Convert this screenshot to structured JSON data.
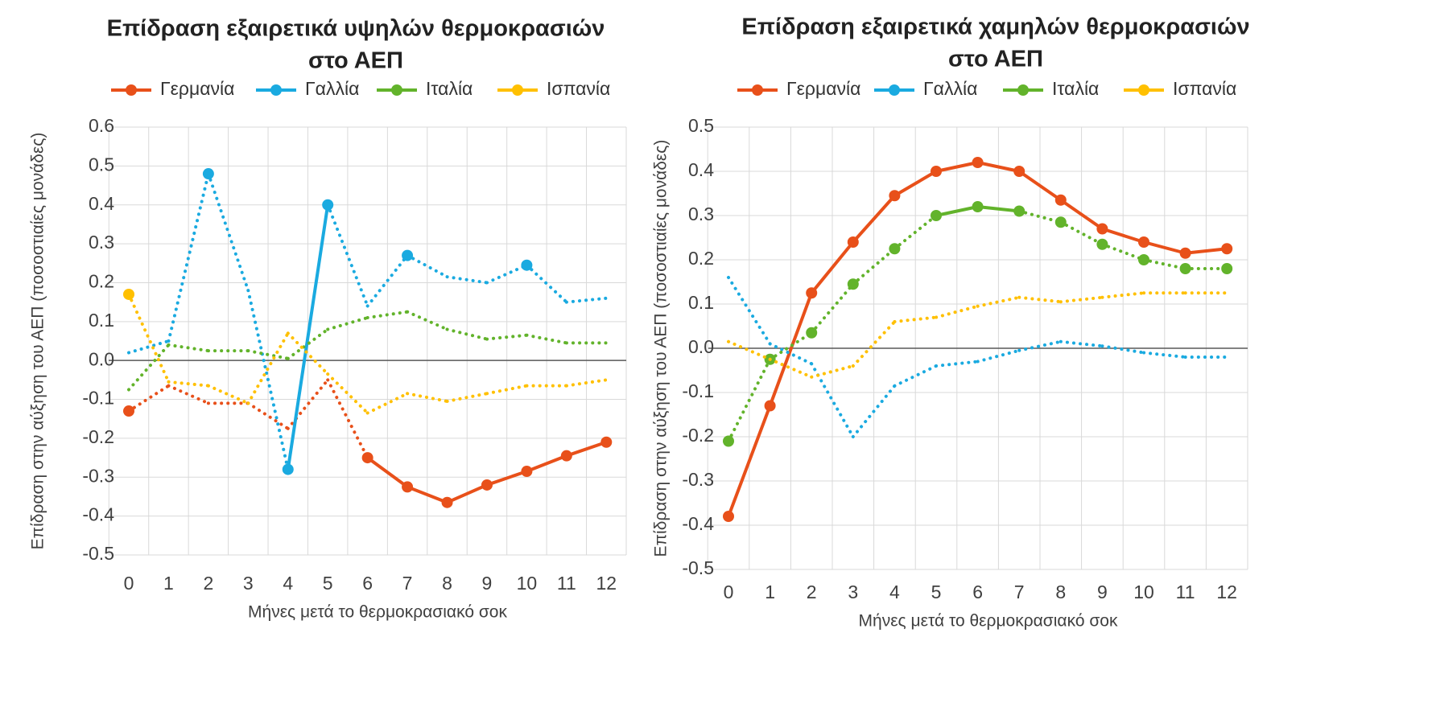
{
  "chart_data": [
    {
      "type": "line",
      "title_lines": [
        "Επίδραση εξαιρετικά υψηλών θερμοκρασιών",
        "στο ΑΕΠ"
      ],
      "xlabel": "Μήνες μετά το θερμοκρασιακό σοκ",
      "ylabel": "Επίδραση στην αύξηση του ΑΕΠ (ποσοστιαίες μονάδες)",
      "x": [
        0,
        1,
        2,
        3,
        4,
        5,
        6,
        7,
        8,
        9,
        10,
        11,
        12
      ],
      "ylim": [
        -0.5,
        0.6
      ],
      "yticks": [
        0.6,
        0.5,
        0.4,
        0.3,
        0.2,
        0.1,
        0.0,
        -0.1,
        -0.2,
        -0.3,
        -0.4,
        -0.5
      ],
      "grid": true,
      "legend_position": "top",
      "series": [
        {
          "name": "Γερμανία",
          "color": "#E8501A",
          "values": [
            -0.13,
            -0.065,
            -0.11,
            -0.11,
            -0.175,
            -0.05,
            -0.25,
            -0.325,
            -0.365,
            -0.32,
            -0.285,
            -0.245,
            -0.21
          ],
          "markers": [
            0,
            6,
            7,
            8,
            9,
            10,
            11,
            12
          ],
          "solid_segments": [
            [
              6,
              12
            ]
          ]
        },
        {
          "name": "Γαλλία",
          "color": "#1AAAE0",
          "values": [
            0.02,
            0.05,
            0.48,
            0.18,
            -0.28,
            0.4,
            0.14,
            0.27,
            0.215,
            0.2,
            0.245,
            0.15,
            0.16
          ],
          "markers": [
            2,
            4,
            5,
            7,
            10
          ],
          "solid_segments": [
            [
              4,
              5
            ]
          ]
        },
        {
          "name": "Ιταλία",
          "color": "#62B32B",
          "values": [
            -0.075,
            0.04,
            0.025,
            0.025,
            0.005,
            0.08,
            0.11,
            0.125,
            0.08,
            0.055,
            0.065,
            0.045,
            0.045
          ],
          "markers": [],
          "solid_segments": []
        },
        {
          "name": "Ισπανία",
          "color": "#FFC000",
          "values": [
            0.17,
            -0.055,
            -0.065,
            -0.11,
            0.07,
            -0.035,
            -0.135,
            -0.085,
            -0.105,
            -0.085,
            -0.065,
            -0.065,
            -0.05
          ],
          "markers": [
            0
          ],
          "solid_segments": []
        }
      ]
    },
    {
      "type": "line",
      "title_lines": [
        "Επίδραση εξαιρετικά χαμηλών θερμοκρασιών",
        "στο ΑΕΠ"
      ],
      "xlabel": "Μήνες μετά το θερμοκρασιακό σοκ",
      "ylabel": "Επίδραση στην αύξηση του ΑΕΠ (ποσοστιαίες μονάδες)",
      "x": [
        0,
        1,
        2,
        3,
        4,
        5,
        6,
        7,
        8,
        9,
        10,
        11,
        12
      ],
      "ylim": [
        -0.5,
        0.5
      ],
      "yticks": [
        0.5,
        0.4,
        0.3,
        0.2,
        0.1,
        0.0,
        -0.1,
        -0.2,
        -0.3,
        -0.4,
        -0.5
      ],
      "grid": true,
      "legend_position": "top",
      "series": [
        {
          "name": "Γερμανία",
          "color": "#E8501A",
          "values": [
            -0.38,
            -0.13,
            0.125,
            0.24,
            0.345,
            0.4,
            0.42,
            0.4,
            0.335,
            0.27,
            0.24,
            0.215,
            0.225
          ],
          "markers": [
            0,
            1,
            2,
            3,
            4,
            5,
            6,
            7,
            8,
            9,
            10,
            11,
            12
          ],
          "solid_segments": [
            [
              0,
              12
            ]
          ]
        },
        {
          "name": "Γαλλία",
          "color": "#1AAAE0",
          "values": [
            0.16,
            0.01,
            -0.035,
            -0.2,
            -0.085,
            -0.04,
            -0.03,
            -0.005,
            0.015,
            0.005,
            -0.01,
            -0.02,
            -0.02
          ],
          "markers": [],
          "solid_segments": []
        },
        {
          "name": "Ιταλία",
          "color": "#62B32B",
          "values": [
            -0.21,
            -0.025,
            0.035,
            0.145,
            0.225,
            0.3,
            0.32,
            0.31,
            0.285,
            0.235,
            0.2,
            0.18,
            0.18
          ],
          "markers": [
            0,
            1,
            2,
            3,
            4,
            5,
            6,
            7,
            8,
            9,
            10,
            11,
            12
          ],
          "solid_segments": [
            [
              5,
              7
            ]
          ]
        },
        {
          "name": "Ισπανία",
          "color": "#FFC000",
          "values": [
            0.015,
            -0.025,
            -0.065,
            -0.04,
            0.06,
            0.07,
            0.095,
            0.115,
            0.105,
            0.115,
            0.125,
            0.125,
            0.125
          ],
          "markers": [],
          "solid_segments": []
        }
      ]
    }
  ]
}
